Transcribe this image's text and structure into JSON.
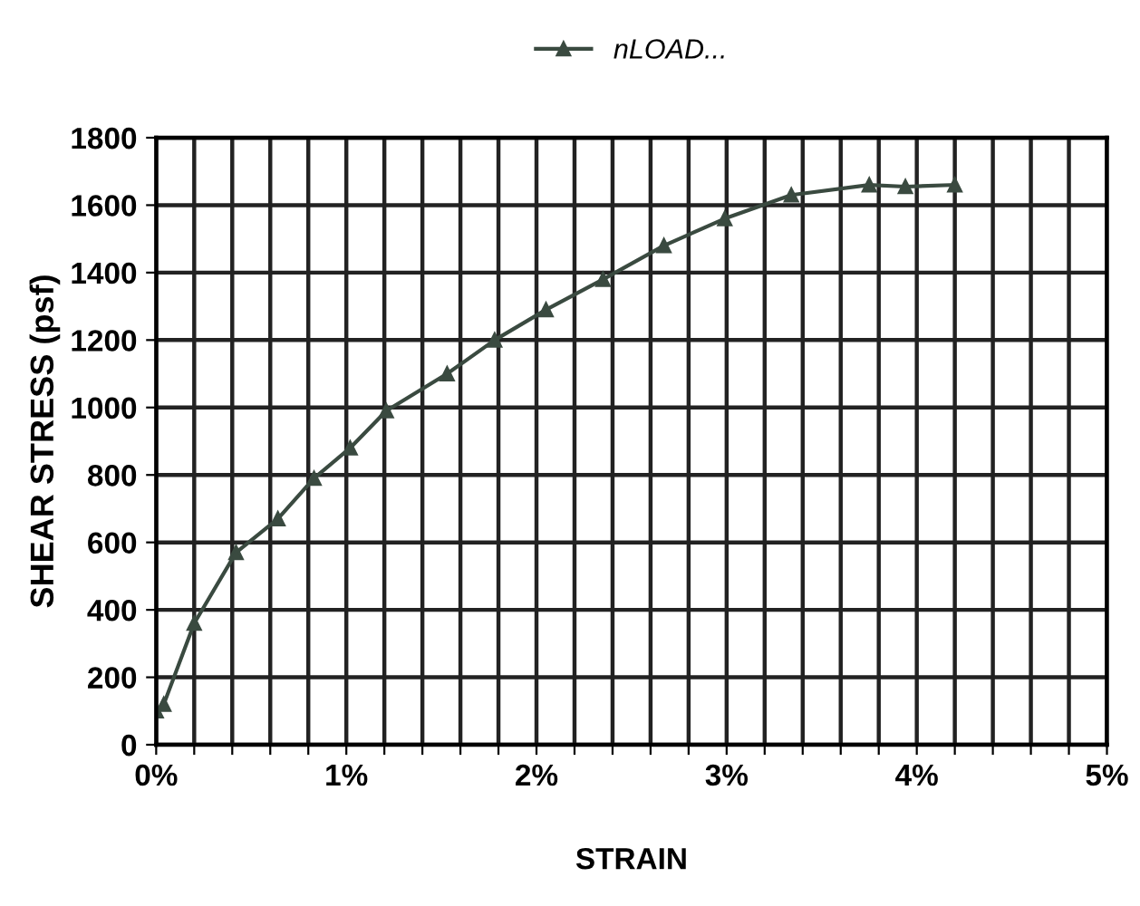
{
  "chart_data": {
    "type": "line",
    "xlabel": "STRAIN",
    "ylabel": "SHEAR STRESS (psf)",
    "x": [
      0.0,
      0.04,
      0.2,
      0.42,
      0.64,
      0.83,
      1.02,
      1.21,
      1.53,
      1.78,
      2.05,
      2.35,
      2.67,
      2.99,
      3.34,
      3.75,
      3.94,
      4.2
    ],
    "series": [
      {
        "name": "nLOAD...",
        "color": "#3a4a40",
        "values": [
          100,
          120,
          360,
          570,
          670,
          790,
          880,
          990,
          1100,
          1200,
          1290,
          1380,
          1480,
          1560,
          1630,
          1660,
          1655,
          1660
        ]
      }
    ],
    "xlim": [
      0,
      5
    ],
    "ylim": [
      0,
      1800
    ],
    "xticks": [
      {
        "value": 0,
        "label": "0%"
      },
      {
        "value": 0.2,
        "label": null
      },
      {
        "value": 0.4,
        "label": null
      },
      {
        "value": 0.6,
        "label": null
      },
      {
        "value": 0.8,
        "label": null
      },
      {
        "value": 1,
        "label": "1%"
      },
      {
        "value": 1.2,
        "label": null
      },
      {
        "value": 1.4,
        "label": null
      },
      {
        "value": 1.6,
        "label": null
      },
      {
        "value": 1.8,
        "label": null
      },
      {
        "value": 2,
        "label": "2%"
      },
      {
        "value": 2.2,
        "label": null
      },
      {
        "value": 2.4,
        "label": null
      },
      {
        "value": 2.6,
        "label": null
      },
      {
        "value": 2.8,
        "label": null
      },
      {
        "value": 3,
        "label": "3%"
      },
      {
        "value": 3.2,
        "label": null
      },
      {
        "value": 3.4,
        "label": null
      },
      {
        "value": 3.6,
        "label": null
      },
      {
        "value": 3.8,
        "label": null
      },
      {
        "value": 4,
        "label": "4%"
      },
      {
        "value": 4.2,
        "label": null
      },
      {
        "value": 4.4,
        "label": null
      },
      {
        "value": 4.6,
        "label": null
      },
      {
        "value": 4.8,
        "label": null
      },
      {
        "value": 5,
        "label": "5%"
      }
    ],
    "yticks": [
      0,
      200,
      400,
      600,
      800,
      1000,
      1200,
      1400,
      1600,
      1800
    ],
    "grid": true,
    "legend": "top",
    "marker": "triangle",
    "line_style": "solid"
  }
}
